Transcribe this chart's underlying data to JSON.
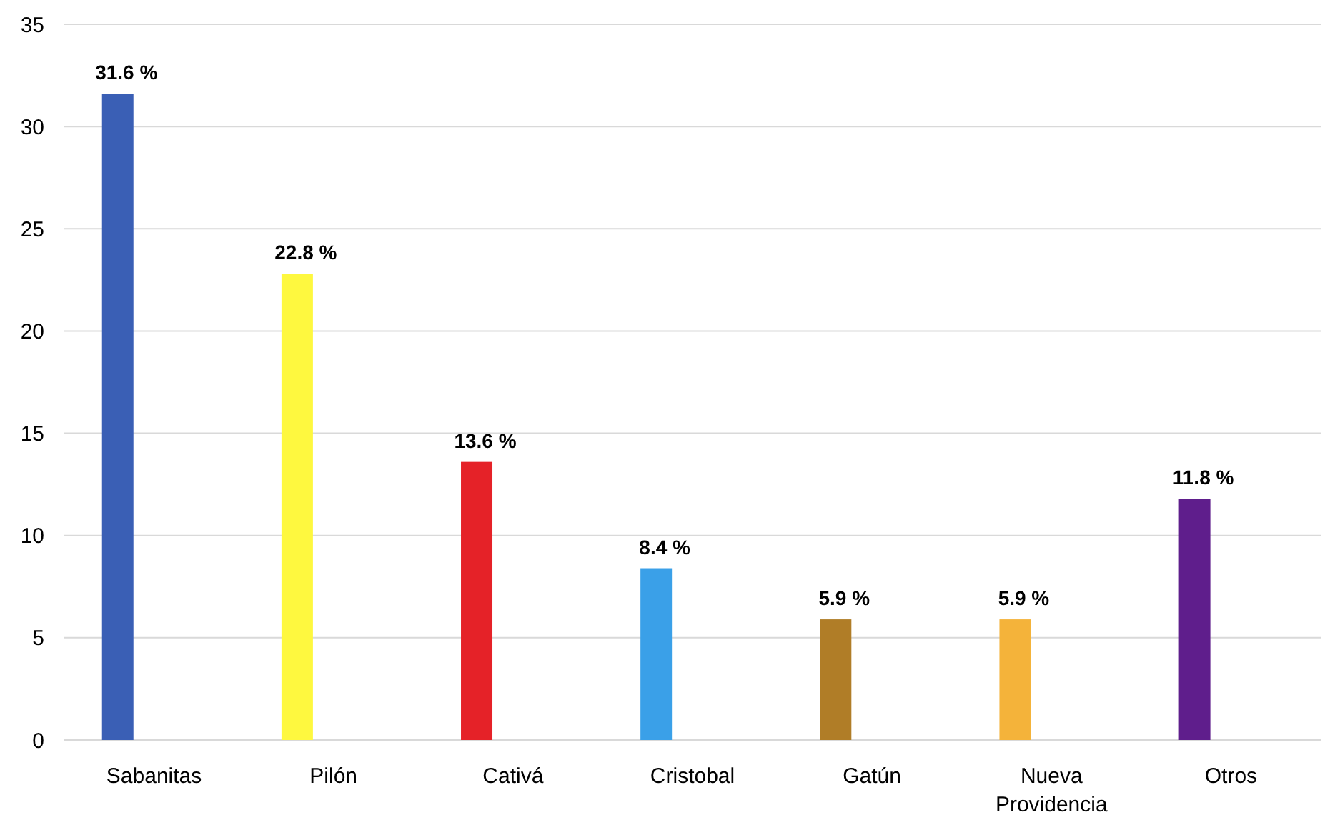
{
  "chart_data": {
    "type": "bar",
    "categories": [
      "Sabanitas",
      "Pilón",
      "Cativá",
      "Cristobal",
      "Gatún",
      "Nueva Providencia",
      "Otros"
    ],
    "values": [
      31.6,
      22.8,
      13.6,
      8.4,
      5.9,
      5.9,
      11.8
    ],
    "value_labels": [
      "31.6 %",
      "22.8 %",
      "13.6 %",
      "8.4 %",
      "5.9 %",
      "5.9 %",
      "11.8 %"
    ],
    "colors": [
      "#3a5fb5",
      "#fef83f",
      "#e52228",
      "#3aa0e8",
      "#b07d27",
      "#f4b33a",
      "#5f1e8c"
    ],
    "ylim": [
      0,
      35
    ],
    "yticks": [
      0,
      5,
      10,
      15,
      20,
      25,
      30,
      35
    ],
    "grid": "y"
  }
}
